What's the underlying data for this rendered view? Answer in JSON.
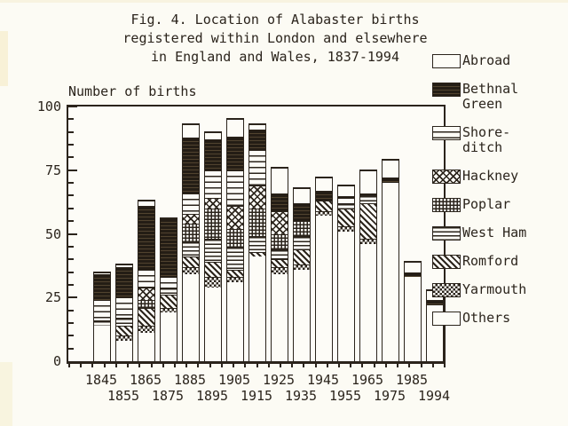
{
  "figure": {
    "title_line1": "Fig. 4. Location of Alabaster births",
    "title_line2": "registered within London and elsewhere",
    "title_line3": "in England and Wales, 1837-1994",
    "y_axis_label": "Number of births"
  },
  "colors": {
    "ink": "#2b241c",
    "paper": "#fcfbf4"
  },
  "chart_data": {
    "type": "bar",
    "stacked": true,
    "title": "Fig. 4. Location of Alabaster births registered within London and elsewhere in England and Wales, 1837-1994",
    "ylabel": "Number of births",
    "xlabel": "",
    "ylim": [
      0,
      100
    ],
    "y_ticks": [
      0,
      25,
      50,
      75,
      100
    ],
    "y_minor_tick_step": 5,
    "grid": false,
    "legend_position": "right",
    "categories": [
      "1845",
      "1855",
      "1865",
      "1875",
      "1885",
      "1895",
      "1905",
      "1915",
      "1925",
      "1935",
      "1945",
      "1955",
      "1965",
      "1975",
      "1985",
      "1994"
    ],
    "series": [
      {
        "name": "Others",
        "pattern": "others",
        "values": [
          14,
          8,
          11,
          19,
          34,
          29,
          31,
          41,
          34,
          36,
          57,
          51,
          46,
          70,
          33,
          22
        ]
      },
      {
        "name": "Yarmouth",
        "pattern": "yarmouth",
        "values": [
          0,
          2,
          3,
          2,
          3,
          4,
          2,
          0,
          3,
          2,
          2,
          2,
          2,
          0,
          0,
          0
        ]
      },
      {
        "name": "Romford",
        "pattern": "romford",
        "values": [
          0,
          4,
          7,
          5,
          4,
          6,
          3,
          2,
          3,
          6,
          4,
          7,
          14,
          0,
          0,
          0
        ]
      },
      {
        "name": "West Ham",
        "pattern": "westham",
        "values": [
          2,
          3,
          0,
          3,
          6,
          9,
          9,
          6,
          4,
          5,
          0,
          2,
          3,
          0,
          0,
          0
        ]
      },
      {
        "name": "Poplar",
        "pattern": "poplar",
        "values": [
          0,
          0,
          3,
          0,
          7,
          12,
          7,
          11,
          6,
          6,
          0,
          0,
          0,
          0,
          0,
          0
        ]
      },
      {
        "name": "Hackney",
        "pattern": "hackney",
        "values": [
          0,
          0,
          5,
          0,
          4,
          4,
          9,
          9,
          9,
          0,
          0,
          0,
          0,
          0,
          0,
          0
        ]
      },
      {
        "name": "Shoreditch",
        "pattern": "shoreditch",
        "values": [
          8,
          8,
          7,
          4,
          8,
          11,
          14,
          14,
          0,
          0,
          0,
          2,
          0,
          0,
          0,
          0
        ]
      },
      {
        "name": "Bethnal Green",
        "pattern": "bethnal",
        "values": [
          10,
          12,
          25,
          23,
          22,
          12,
          13,
          8,
          7,
          7,
          4,
          1,
          1,
          2,
          2,
          2
        ]
      },
      {
        "name": "Abroad",
        "pattern": "abroad",
        "values": [
          1,
          1,
          2,
          0,
          5,
          3,
          7,
          2,
          10,
          6,
          5,
          4,
          9,
          7,
          4,
          4
        ]
      }
    ],
    "bar_totals": [
      35,
      38,
      63,
      56,
      93,
      90,
      95,
      93,
      76,
      68,
      72,
      69,
      75,
      79,
      39,
      28
    ],
    "legend": [
      {
        "label": "Abroad",
        "pattern": "abroad"
      },
      {
        "label": "Bethnal\nGreen",
        "pattern": "bethnal"
      },
      {
        "label": "Shore-\nditch",
        "pattern": "shoreditch"
      },
      {
        "label": "Hackney",
        "pattern": "hackney"
      },
      {
        "label": "Poplar",
        "pattern": "poplar"
      },
      {
        "label": "West Ham",
        "pattern": "westham"
      },
      {
        "label": "Romford",
        "pattern": "romford"
      },
      {
        "label": "Yarmouth",
        "pattern": "yarmouth"
      },
      {
        "label": "Others",
        "pattern": "others"
      }
    ]
  }
}
